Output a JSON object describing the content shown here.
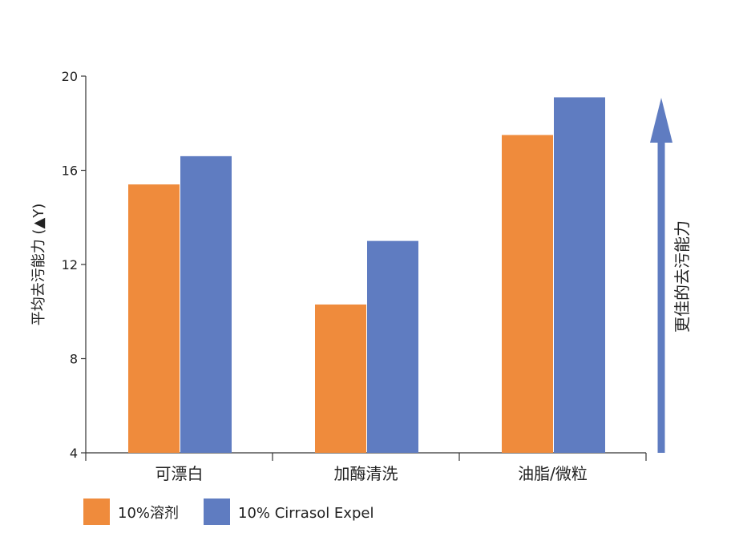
{
  "chart_data": {
    "type": "bar",
    "categories": [
      "可漂白",
      "加酶清洗",
      "油脂/微粒"
    ],
    "series": [
      {
        "name": "10%溶剂",
        "values": [
          15.4,
          10.3,
          17.5
        ],
        "color": "#EF8B3C"
      },
      {
        "name": "10% Cirrasol Expel",
        "values": [
          16.6,
          13.0,
          19.1
        ],
        "color": "#5F7CC1"
      }
    ],
    "ylabel": "平均去污能力 (▲Y)",
    "ylim": [
      4,
      20
    ],
    "yticks": [
      4,
      8,
      12,
      16,
      20
    ],
    "grid": false,
    "legend": "bottom-left",
    "annotation": "更佳的去污能力",
    "annotation_arrow_color": "#5F7CC1"
  }
}
